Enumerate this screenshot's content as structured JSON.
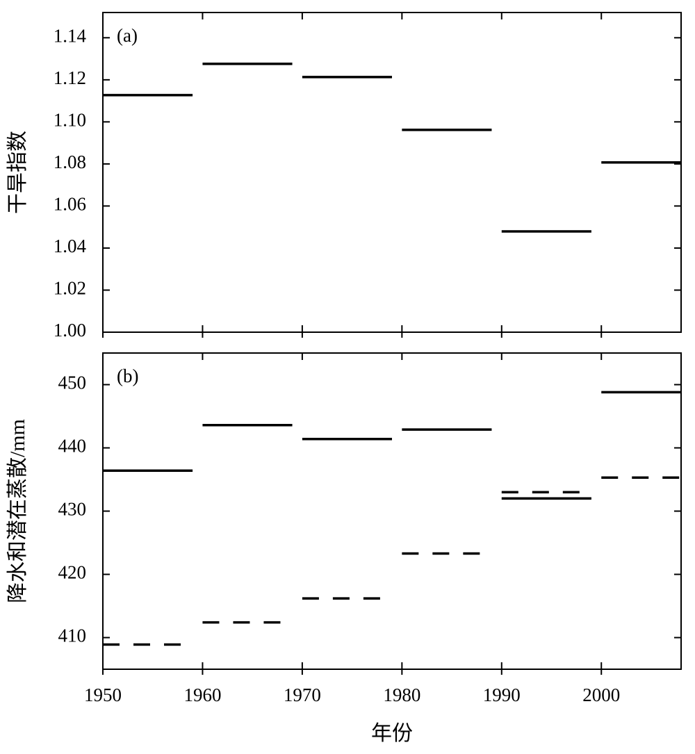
{
  "chart_data": [
    {
      "type": "segment",
      "panel_label": "(a)",
      "y_label": "干旱指数",
      "x_start": [
        1950,
        1960,
        1970,
        1980,
        1990,
        2000
      ],
      "x_end": [
        1959,
        1969,
        1979,
        1989,
        1999,
        2008
      ],
      "series": [
        {
          "style": "solid",
          "color": "#000000",
          "values": [
            1.1127,
            1.1276,
            1.1213,
            1.0962,
            1.0479,
            1.0807
          ]
        }
      ],
      "xlim": [
        1950,
        2008
      ],
      "xticks": [
        1950,
        1960,
        1970,
        1980,
        1990,
        2000
      ],
      "ylim": [
        1.0,
        1.152
      ],
      "yticks": [
        {
          "value": 1.0,
          "label": "1.00"
        },
        {
          "value": 1.02,
          "label": "1.02"
        },
        {
          "value": 1.04,
          "label": "1.04"
        },
        {
          "value": 1.06,
          "label": "1.06"
        },
        {
          "value": 1.08,
          "label": "1.08"
        },
        {
          "value": 1.1,
          "label": "1.10"
        },
        {
          "value": 1.12,
          "label": "1.12"
        },
        {
          "value": 1.14,
          "label": "1.14"
        }
      ]
    },
    {
      "type": "segment",
      "panel_label": "(b)",
      "y_label": "降水和潜在蒸散/mm",
      "x_label": "年份",
      "x_start": [
        1950,
        1960,
        1970,
        1980,
        1990,
        2000
      ],
      "x_end": [
        1959,
        1969,
        1979,
        1989,
        1999,
        2008
      ],
      "series": [
        {
          "style": "solid",
          "color": "#000000",
          "values": [
            436.4,
            443.6,
            441.4,
            442.9,
            432.0,
            448.8
          ]
        },
        {
          "style": "dashed",
          "color": "#000000",
          "values": [
            408.9,
            412.4,
            416.2,
            423.3,
            433.0,
            435.3
          ]
        }
      ],
      "xlim": [
        1950,
        2008
      ],
      "xticks": [
        1950,
        1960,
        1970,
        1980,
        1990,
        2000
      ],
      "ylim": [
        405,
        455
      ],
      "yticks": [
        410,
        420,
        430,
        440,
        450
      ]
    }
  ]
}
